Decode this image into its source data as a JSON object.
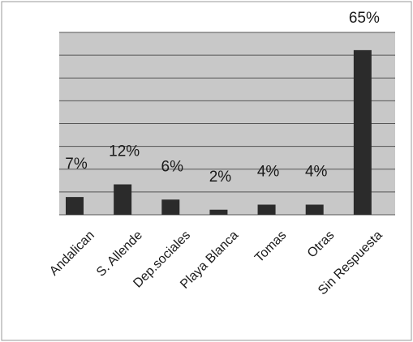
{
  "chart_data": {
    "type": "bar",
    "title": "",
    "xlabel": "",
    "ylabel": "",
    "categories": [
      "Andalican",
      "S. Allende",
      "Dep.sociales",
      "Playa Blanca",
      "Tomas",
      "Otras",
      "Sin Respuesta"
    ],
    "values": [
      7,
      12,
      6,
      2,
      4,
      4,
      65
    ],
    "data_labels": [
      "7%",
      "12%",
      "6%",
      "2%",
      "4%",
      "4%",
      "65%"
    ],
    "ylim": [
      0,
      72
    ],
    "grid": true,
    "legend": "none",
    "colors": {
      "bar": "#2b2b2b",
      "plot_background": "#c8c8c8",
      "gridline": "#555555",
      "frame": "#9a9a9a",
      "text": "#1a1a1a"
    }
  }
}
